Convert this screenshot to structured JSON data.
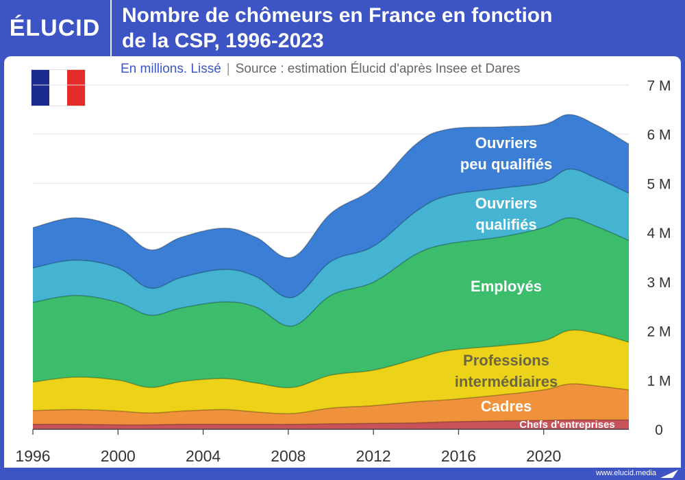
{
  "header": {
    "logo": "ÉLUCID",
    "title_line1": "Nombre de chômeurs en France en fonction",
    "title_line2": "de la CSP, 1996-2023"
  },
  "subtitle": {
    "unit": "En millions. Lissé",
    "separator": "|",
    "source": "Source : estimation Élucid d'après Insee et Dares"
  },
  "footer": {
    "site": "www.elucid.media"
  },
  "colors": {
    "brand": "#3d55c4",
    "chefs": "#c9525a",
    "cadres": "#f0913c",
    "intermediaires": "#ecd31a",
    "employes": "#3cbd6c",
    "ouvriers_qualifies": "#45b4d3",
    "ouvriers_peu_qualifies": "#3a7fd5"
  },
  "chart_data": {
    "type": "area",
    "stacked": true,
    "title": "Nombre de chômeurs en France en fonction de la CSP, 1996-2023",
    "subtitle": "En millions. Lissé",
    "xlabel": "",
    "ylabel": "",
    "xlim": [
      1996,
      2024
    ],
    "ylim": [
      0,
      7
    ],
    "x_ticks": [
      "1996",
      "2000",
      "2004",
      "2008",
      "2012",
      "2016",
      "2020"
    ],
    "y_ticks": [
      "0",
      "1 M",
      "2 M",
      "3 M",
      "4 M",
      "5 M",
      "6 M",
      "7 M"
    ],
    "grid": "horizontal",
    "x": [
      1996,
      1998,
      2000,
      2001.5,
      2003,
      2005,
      2006.5,
      2008.2,
      2010,
      2012,
      2014,
      2015.5,
      2018,
      2020,
      2021.2,
      2022.5,
      2024
    ],
    "series": [
      {
        "name": "Chefs d'entreprises",
        "values": [
          0.1,
          0.1,
          0.09,
          0.09,
          0.1,
          0.1,
          0.1,
          0.1,
          0.11,
          0.12,
          0.13,
          0.15,
          0.17,
          0.18,
          0.19,
          0.19,
          0.19
        ]
      },
      {
        "name": "Cadres",
        "values": [
          0.28,
          0.3,
          0.28,
          0.24,
          0.27,
          0.3,
          0.25,
          0.22,
          0.32,
          0.36,
          0.43,
          0.45,
          0.53,
          0.62,
          0.73,
          0.69,
          0.61
        ]
      },
      {
        "name": "Professions intermédiaires",
        "values": [
          0.58,
          0.66,
          0.63,
          0.52,
          0.6,
          0.63,
          0.59,
          0.53,
          0.67,
          0.72,
          0.87,
          1.0,
          1.0,
          1.0,
          1.09,
          1.07,
          0.97
        ]
      },
      {
        "name": "Employés",
        "values": [
          1.62,
          1.66,
          1.58,
          1.47,
          1.5,
          1.56,
          1.54,
          1.25,
          1.62,
          1.79,
          2.13,
          2.17,
          2.21,
          2.3,
          2.29,
          2.17,
          2.07
        ]
      },
      {
        "name": "Ouvriers qualifiés",
        "values": [
          0.7,
          0.72,
          0.7,
          0.55,
          0.62,
          0.66,
          0.62,
          0.58,
          0.69,
          0.73,
          0.87,
          0.98,
          0.99,
          0.92,
          0.99,
          0.98,
          0.96
        ]
      },
      {
        "name": "Ouvriers peu qualifiés",
        "values": [
          0.82,
          0.86,
          0.82,
          0.78,
          0.82,
          0.84,
          0.8,
          0.82,
          0.98,
          1.18,
          1.37,
          1.35,
          1.25,
          1.18,
          1.11,
          1.08,
          1.0
        ]
      }
    ],
    "area_labels": [
      {
        "series": "Ouvriers peu qualifiés",
        "lines": [
          "Ouvriers",
          "peu qualifiés"
        ]
      },
      {
        "series": "Ouvriers qualifiés",
        "lines": [
          "Ouvriers",
          "qualifiés"
        ]
      },
      {
        "series": "Employés",
        "lines": [
          "Employés"
        ]
      },
      {
        "series": "Professions intermédiaires",
        "lines": [
          "Professions",
          "intermédiaires"
        ]
      },
      {
        "series": "Cadres",
        "lines": [
          "Cadres"
        ]
      },
      {
        "series": "Chefs d'entreprises",
        "lines": [
          "Chefs d'entreprises"
        ]
      }
    ]
  }
}
